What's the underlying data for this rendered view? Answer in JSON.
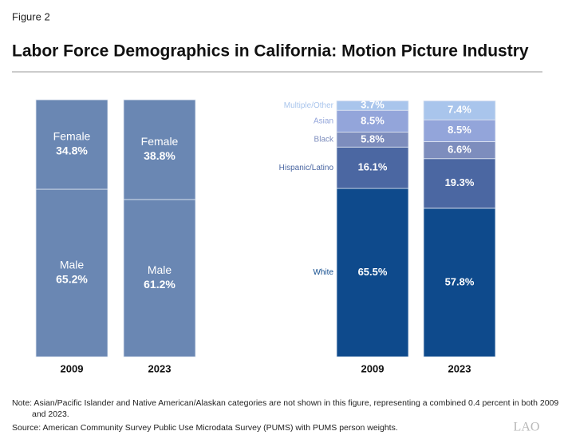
{
  "figure_label": "Figure 2",
  "title": "Labor Force Demographics in California: Motion Picture Industry",
  "chart_data": [
    {
      "type": "stacked-bar",
      "categories": [
        "2009",
        "2023"
      ],
      "ylim": [
        0,
        100
      ],
      "legend": "inside",
      "series": [
        {
          "name": "Male",
          "color": "#6a87b3",
          "values": [
            65.2,
            61.2
          ],
          "value_labels": [
            "65.2%",
            "61.2%"
          ]
        },
        {
          "name": "Female",
          "color": "#6a87b3",
          "values": [
            34.8,
            38.8
          ],
          "value_labels": [
            "34.8%",
            "38.8%"
          ]
        }
      ]
    },
    {
      "type": "stacked-bar",
      "categories": [
        "2009",
        "2023"
      ],
      "ylim": [
        0,
        100
      ],
      "legend": "left",
      "series": [
        {
          "name": "White",
          "color": "#0e4a8c",
          "values": [
            65.5,
            57.8
          ],
          "value_labels": [
            "65.5%",
            "57.8%"
          ]
        },
        {
          "name": "Hispanic/Latino",
          "color": "#4b67a2",
          "values": [
            16.1,
            19.3
          ],
          "value_labels": [
            "16.1%",
            "19.3%"
          ]
        },
        {
          "name": "Black",
          "color": "#7d8dbd",
          "values": [
            5.8,
            6.6
          ],
          "value_labels": [
            "5.8%",
            "6.6%"
          ]
        },
        {
          "name": "Asian",
          "color": "#93a5da",
          "values": [
            8.5,
            8.5
          ],
          "value_labels": [
            "8.5%",
            "8.5%"
          ]
        },
        {
          "name": "Multiple/Other",
          "color": "#a9c5ec",
          "values": [
            3.7,
            7.4
          ],
          "value_labels": [
            "3.7%",
            "7.4%"
          ]
        }
      ]
    }
  ],
  "note": "Note: Asian/Pacific Islander and Native American/Alaskan categories are not shown in this figure, representing a combined 0.4 percent in both 2009 and 2023.",
  "source": "Source: American Community Survey Public Use Microdata Survey (PUMS) with PUMS person weights.",
  "logo": "LAO"
}
